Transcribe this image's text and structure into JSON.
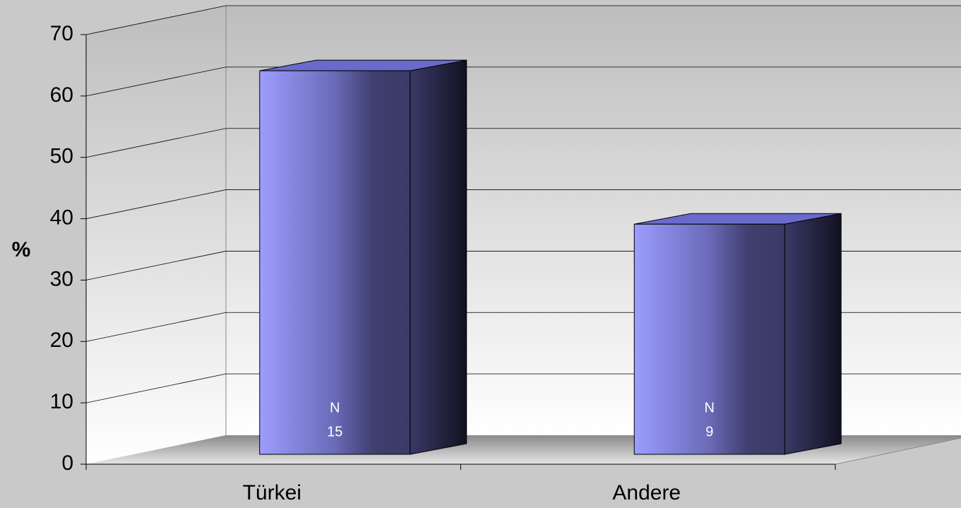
{
  "chart_data": {
    "type": "bar3d",
    "y_label": "%",
    "categories": [
      "Türkei",
      "Andere"
    ],
    "values": [
      62.5,
      37.5
    ],
    "count_label": "N",
    "counts": [
      15,
      9
    ],
    "color": "#9999ff",
    "ylim": [
      0,
      70
    ],
    "yticks": [
      0,
      10,
      20,
      30,
      40,
      50,
      60,
      70
    ],
    "grid": true
  }
}
